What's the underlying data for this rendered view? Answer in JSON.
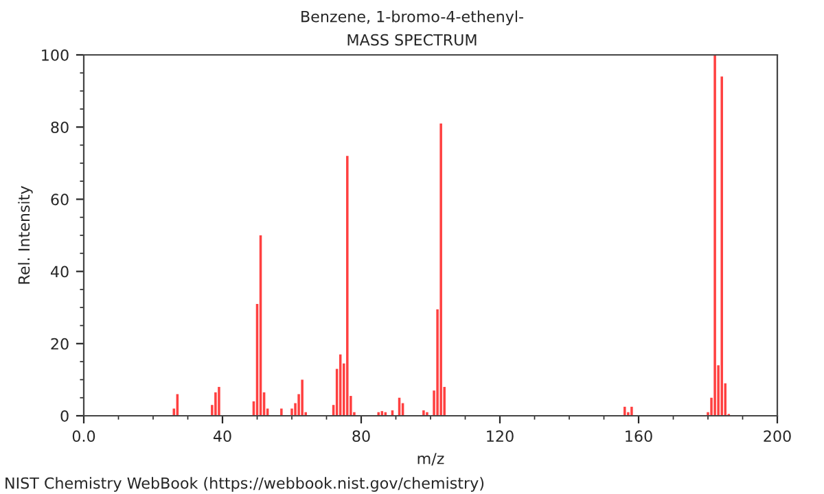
{
  "chart_data": {
    "type": "bar",
    "title": "Benzene, 1-bromo-4-ethenyl-",
    "subtitle": "MASS SPECTRUM",
    "xlabel": "m/z",
    "ylabel": "Rel. Intensity",
    "x": [
      26,
      27,
      37,
      38,
      39,
      49,
      50,
      51,
      52,
      53,
      57,
      60,
      61,
      62,
      63,
      64,
      72,
      73,
      74,
      75,
      76,
      77,
      78,
      85,
      86,
      87,
      89,
      91,
      92,
      98,
      99,
      101,
      102,
      103,
      104,
      156,
      157,
      158,
      180,
      181,
      182,
      183,
      184,
      185,
      186
    ],
    "values": [
      2,
      6,
      3,
      6.5,
      8,
      4,
      31,
      50,
      6.5,
      2,
      2,
      2,
      3.5,
      6,
      10,
      1,
      3,
      13,
      17,
      14.5,
      72,
      5.5,
      1,
      1,
      1.3,
      1,
      1.5,
      5,
      3.5,
      1.5,
      1,
      7,
      29.5,
      81,
      8,
      2.5,
      1,
      2.5,
      1,
      5,
      100,
      14,
      94,
      9,
      0.5
    ],
    "color": "#ff4040",
    "xlim": [
      0,
      200
    ],
    "xticks": [
      {
        "value": 0,
        "label": "0.0"
      },
      40,
      80,
      120,
      160,
      200
    ],
    "ylim": [
      0,
      100
    ],
    "yticks": [
      0,
      20,
      40,
      60,
      80,
      100
    ],
    "grid": false,
    "legend": false,
    "annotations": [
      "NIST Chemistry WebBook (https://webbook.nist.gov/chemistry)"
    ]
  }
}
